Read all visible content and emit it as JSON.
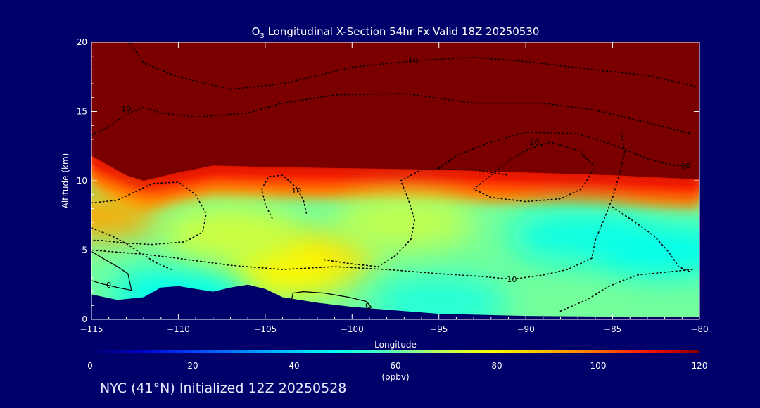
{
  "chart_data": {
    "type": "heatmap",
    "title_prefix": "O",
    "title_subscript": "3",
    "title_rest": " Longitudinal X-Section 54hr  Fx Valid 18Z 20250530",
    "xlabel": "Longitude",
    "ylabel": "Altitude (km)",
    "xlim": [
      -115,
      -80
    ],
    "ylim": [
      0,
      20
    ],
    "x_ticks": [
      -115,
      -110,
      -105,
      -100,
      -95,
      -90,
      -85,
      -80
    ],
    "x_tick_labels": [
      "−115",
      "−110",
      "−105",
      "−100",
      "−95",
      "−90",
      "−85",
      "−80"
    ],
    "y_ticks": [
      0,
      5,
      10,
      15,
      20
    ],
    "y_tick_labels": [
      "0",
      "5",
      "10",
      "15",
      "20"
    ],
    "colorbar": {
      "min": 0,
      "max": 120,
      "ticks": [
        0,
        20,
        40,
        60,
        80,
        100,
        120
      ],
      "tick_labels": [
        "0",
        "20",
        "40",
        "60",
        "80",
        "100",
        "120"
      ],
      "unit": "(ppbv)"
    },
    "tropopause_height_km": [
      [
        -115,
        11.8
      ],
      [
        -113,
        10.4
      ],
      [
        -112,
        10.0
      ],
      [
        -110,
        10.6
      ],
      [
        -108,
        11.1
      ],
      [
        -105,
        11.0
      ],
      [
        -100,
        10.9
      ],
      [
        -95,
        10.8
      ],
      [
        -90,
        10.6
      ],
      [
        -85,
        10.4
      ],
      [
        -80,
        10.1
      ]
    ],
    "stratosphere_ozone_ppbv": 120,
    "troposphere_background_ozone_ppbv": 62,
    "ozone_features": [
      {
        "lon": -102,
        "alt_km": 4.4,
        "ppbv": 84
      },
      {
        "lon": -114.5,
        "alt_km": 7.5,
        "ppbv": 92
      },
      {
        "lon": -104,
        "alt_km": 3.6,
        "ppbv": 80
      },
      {
        "lon": -87,
        "alt_km": 6.0,
        "ppbv": 50
      },
      {
        "lon": -82,
        "alt_km": 5.0,
        "ppbv": 48
      },
      {
        "lon": -95,
        "alt_km": 1.2,
        "ppbv": 52
      },
      {
        "lon": -110,
        "alt_km": 1.8,
        "ppbv": 48
      },
      {
        "lon": -107,
        "alt_km": 6.2,
        "ppbv": 72
      },
      {
        "lon": -97,
        "alt_km": 7.0,
        "ppbv": 70
      }
    ],
    "terrain_km": [
      [
        -115,
        1.8
      ],
      [
        -113.5,
        1.4
      ],
      [
        -112,
        1.6
      ],
      [
        -111,
        2.3
      ],
      [
        -110,
        2.4
      ],
      [
        -109,
        2.2
      ],
      [
        -108,
        2.0
      ],
      [
        -107,
        2.3
      ],
      [
        -106,
        2.5
      ],
      [
        -105,
        2.2
      ],
      [
        -104,
        1.6
      ],
      [
        -102,
        1.2
      ],
      [
        -100,
        0.9
      ],
      [
        -97,
        0.6
      ],
      [
        -95,
        0.4
      ],
      [
        -90,
        0.25
      ],
      [
        -85,
        0.2
      ],
      [
        -80,
        0.15
      ]
    ],
    "contour_labels": [
      {
        "text": "10",
        "lon": -96.5,
        "alt_km": 18.7
      },
      {
        "text": "10",
        "lon": -113.0,
        "alt_km": 15.2
      },
      {
        "text": "20",
        "lon": -89.5,
        "alt_km": 12.8
      },
      {
        "text": "10",
        "lon": -80.8,
        "alt_km": 11.1
      },
      {
        "text": "10",
        "lon": -103.2,
        "alt_km": 9.3
      },
      {
        "text": "10",
        "lon": -90.8,
        "alt_km": 2.9
      },
      {
        "text": "0",
        "lon": -114.0,
        "alt_km": 2.5
      },
      {
        "text": "0",
        "lon": -99.1,
        "alt_km": 1.0
      }
    ],
    "contours_dotted": [
      [
        [
          -112.8,
          20
        ],
        [
          -112,
          18.5
        ],
        [
          -110,
          17.5
        ],
        [
          -107,
          16.6
        ],
        [
          -104,
          17.0
        ],
        [
          -100,
          18.2
        ],
        [
          -96,
          18.7
        ],
        [
          -93,
          18.9
        ],
        [
          -90,
          18.6
        ],
        [
          -86,
          18.0
        ],
        [
          -83,
          17.6
        ],
        [
          -80.2,
          16.8
        ]
      ],
      [
        [
          -115,
          13.3
        ],
        [
          -114,
          13.9
        ],
        [
          -113,
          14.8
        ],
        [
          -112,
          15.3
        ],
        [
          -111,
          14.9
        ],
        [
          -109,
          14.6
        ],
        [
          -106,
          14.9
        ],
        [
          -104,
          15.6
        ],
        [
          -101,
          16.2
        ],
        [
          -97,
          16.3
        ],
        [
          -93,
          15.6
        ],
        [
          -89,
          15.6
        ],
        [
          -86,
          15.1
        ],
        [
          -83,
          14.2
        ],
        [
          -80.5,
          13.4
        ]
      ],
      [
        [
          -93,
          9.4
        ],
        [
          -92,
          10.4
        ],
        [
          -91,
          11.4
        ],
        [
          -90,
          12.2
        ],
        [
          -88.6,
          12.8
        ],
        [
          -87,
          12.2
        ],
        [
          -86,
          11.0
        ],
        [
          -86.8,
          9.4
        ],
        [
          -88,
          8.7
        ],
        [
          -90,
          8.5
        ],
        [
          -92,
          8.8
        ],
        [
          -93,
          9.4
        ]
      ],
      [
        [
          -95,
          10.9
        ],
        [
          -94,
          11.8
        ],
        [
          -92,
          12.8
        ],
        [
          -90,
          13.5
        ],
        [
          -87,
          13.4
        ],
        [
          -85,
          12.6
        ],
        [
          -83,
          11.6
        ],
        [
          -81.5,
          11.1
        ],
        [
          -80.8,
          11.1
        ]
      ],
      [
        [
          -84.5,
          13.5
        ],
        [
          -84.3,
          12.0
        ],
        [
          -84.6,
          10.5
        ],
        [
          -85.0,
          8.8
        ],
        [
          -85.5,
          7.2
        ],
        [
          -86.0,
          5.7
        ],
        [
          -86.2,
          4.4
        ],
        [
          -87.6,
          3.6
        ],
        [
          -89.0,
          3.2
        ],
        [
          -90.8,
          2.9
        ],
        [
          -92.6,
          3.1
        ],
        [
          -95.0,
          3.3
        ],
        [
          -98.0,
          3.6
        ],
        [
          -101.0,
          3.8
        ],
        [
          -104.0,
          3.6
        ],
        [
          -107.0,
          3.9
        ],
        [
          -110.0,
          4.4
        ],
        [
          -112.0,
          4.7
        ],
        [
          -114.0,
          4.9
        ],
        [
          -115,
          5.0
        ]
      ],
      [
        [
          -104.6,
          7.3
        ],
        [
          -105.0,
          8.3
        ],
        [
          -105.2,
          9.4
        ],
        [
          -104.8,
          10.3
        ],
        [
          -104.0,
          10.4
        ],
        [
          -103.2,
          9.5
        ],
        [
          -102.8,
          8.6
        ],
        [
          -102.6,
          7.5
        ]
      ],
      [
        [
          -115,
          8.4
        ],
        [
          -113.5,
          8.6
        ],
        [
          -112.5,
          9.2
        ],
        [
          -111.5,
          9.8
        ],
        [
          -110.0,
          9.9
        ],
        [
          -109.0,
          9.0
        ],
        [
          -108.4,
          7.6
        ],
        [
          -108.6,
          6.3
        ],
        [
          -109.6,
          5.6
        ],
        [
          -111.5,
          5.4
        ],
        [
          -113.0,
          5.5
        ],
        [
          -114.5,
          5.7
        ],
        [
          -115,
          5.7
        ]
      ],
      [
        [
          -101.6,
          4.3
        ],
        [
          -100.0,
          4.0
        ],
        [
          -98.5,
          3.8
        ],
        [
          -97.5,
          4.6
        ],
        [
          -96.6,
          5.8
        ],
        [
          -96.4,
          7.2
        ],
        [
          -96.8,
          8.8
        ],
        [
          -97.2,
          10.0
        ],
        [
          -96.0,
          10.8
        ],
        [
          -93.0,
          10.8
        ],
        [
          -91.0,
          10.4
        ]
      ],
      [
        [
          -88.0,
          0.6
        ],
        [
          -86.5,
          1.4
        ],
        [
          -85.2,
          2.4
        ],
        [
          -83.6,
          3.2
        ],
        [
          -82.0,
          3.4
        ],
        [
          -80.4,
          3.6
        ]
      ],
      [
        [
          -85.0,
          8.1
        ],
        [
          -83.7,
          7.0
        ],
        [
          -82.6,
          6.0
        ],
        [
          -81.8,
          4.9
        ],
        [
          -81.2,
          3.8
        ],
        [
          -80.5,
          3.4
        ]
      ],
      [
        [
          -115,
          6.6
        ],
        [
          -113.8,
          6.0
        ],
        [
          -112.9,
          5.4
        ],
        [
          -112.2,
          4.8
        ],
        [
          -111.3,
          4.1
        ],
        [
          -110.4,
          3.6
        ]
      ]
    ],
    "contours_solid": [
      [
        [
          -115,
          4.9
        ],
        [
          -114.2,
          4.3
        ],
        [
          -113.5,
          3.8
        ],
        [
          -112.9,
          3.3
        ],
        [
          -112.7,
          2.1
        ],
        [
          -113.5,
          2.3
        ],
        [
          -114.5,
          2.6
        ],
        [
          -115,
          2.8
        ]
      ],
      [
        [
          -103.5,
          1.3
        ],
        [
          -103.4,
          1.9
        ],
        [
          -102.8,
          2.0
        ],
        [
          -101.6,
          1.9
        ],
        [
          -100.2,
          1.6
        ],
        [
          -99.2,
          1.3
        ],
        [
          -98.9,
          0.9
        ],
        [
          -99.2,
          0.5
        ]
      ]
    ]
  },
  "footer": {
    "text": "NYC (41°N) Initialized 12Z 20250528"
  }
}
